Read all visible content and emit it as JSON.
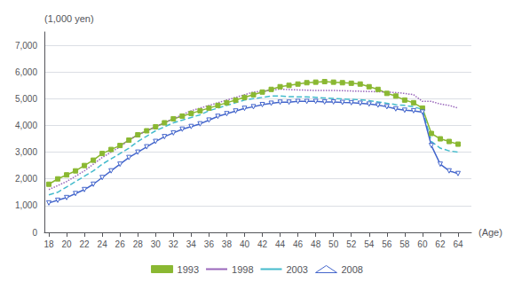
{
  "chart_data": {
    "type": "line",
    "y_label": "(1,000 yen)",
    "x_label": "(Age)",
    "x": [
      18,
      19,
      20,
      21,
      22,
      23,
      24,
      25,
      26,
      27,
      28,
      29,
      30,
      31,
      32,
      33,
      34,
      35,
      36,
      37,
      38,
      39,
      40,
      41,
      42,
      43,
      44,
      45,
      46,
      47,
      48,
      49,
      50,
      51,
      52,
      53,
      54,
      55,
      56,
      57,
      58,
      59,
      60,
      61,
      62,
      63,
      64
    ],
    "series": [
      {
        "name": "1993",
        "color": "#8ab832",
        "marker": "square",
        "line_style": "solid",
        "values": [
          1800,
          2000,
          2150,
          2300,
          2500,
          2700,
          2950,
          3100,
          3250,
          3450,
          3650,
          3800,
          3950,
          4100,
          4250,
          4350,
          4450,
          4550,
          4650,
          4750,
          4850,
          4950,
          5050,
          5150,
          5250,
          5350,
          5450,
          5500,
          5550,
          5600,
          5620,
          5640,
          5620,
          5600,
          5580,
          5550,
          5450,
          5350,
          5200,
          5100,
          4950,
          4850,
          4650,
          3700,
          3500,
          3400,
          3300
        ]
      },
      {
        "name": "1998",
        "color": "#9966bb",
        "marker": "none",
        "line_style": "dotted",
        "values": [
          1600,
          1750,
          1900,
          2100,
          2300,
          2550,
          2800,
          3000,
          3200,
          3450,
          3650,
          3800,
          3950,
          4100,
          4250,
          4400,
          4550,
          4650,
          4750,
          4850,
          4950,
          5050,
          5150,
          5250,
          5280,
          5320,
          5360,
          5340,
          5330,
          5320,
          5310,
          5310,
          5310,
          5300,
          5290,
          5280,
          5270,
          5260,
          5250,
          5230,
          5200,
          5150,
          4900,
          4900,
          4800,
          4750,
          4650
        ]
      },
      {
        "name": "2003",
        "color": "#44bbcc",
        "marker": "none",
        "line_style": "dashed",
        "values": [
          1400,
          1500,
          1700,
          1900,
          2100,
          2300,
          2550,
          2750,
          2950,
          3150,
          3400,
          3600,
          3800,
          3950,
          4100,
          4200,
          4300,
          4400,
          4550,
          4650,
          4750,
          4850,
          4950,
          5000,
          5050,
          5100,
          5100,
          5080,
          5070,
          5070,
          5050,
          5030,
          5010,
          4990,
          4980,
          4960,
          4930,
          4880,
          4830,
          4780,
          4750,
          4700,
          4600,
          3400,
          3150,
          3050,
          3000
        ]
      },
      {
        "name": "2008",
        "color": "#4466cc",
        "marker": "open_triangle_down",
        "line_style": "solid",
        "values": [
          1100,
          1200,
          1300,
          1450,
          1600,
          1800,
          2050,
          2300,
          2550,
          2800,
          3000,
          3200,
          3400,
          3580,
          3720,
          3860,
          3960,
          4060,
          4200,
          4340,
          4440,
          4540,
          4640,
          4700,
          4780,
          4830,
          4870,
          4870,
          4900,
          4900,
          4900,
          4880,
          4880,
          4860,
          4850,
          4830,
          4800,
          4760,
          4700,
          4620,
          4570,
          4550,
          4500,
          3250,
          2550,
          2300,
          2200
        ]
      }
    ],
    "xlim": [
      17.5,
      65.5
    ],
    "xticks": [
      18,
      20,
      22,
      24,
      26,
      28,
      30,
      32,
      34,
      36,
      38,
      40,
      42,
      44,
      46,
      48,
      50,
      52,
      54,
      56,
      58,
      60,
      62,
      64
    ],
    "ylim": [
      0,
      7500
    ],
    "yticks": [
      0,
      {
        "value": 1000,
        "label": "1,000"
      },
      {
        "value": 2000,
        "label": "2,000"
      },
      {
        "value": 3000,
        "label": "3,000"
      },
      {
        "value": 4000,
        "label": "4,000"
      },
      {
        "value": 5000,
        "label": "5,000"
      },
      {
        "value": 6000,
        "label": "6,000"
      },
      {
        "value": 7000,
        "label": "7,000"
      }
    ],
    "grid": true,
    "legend": "bottom"
  }
}
